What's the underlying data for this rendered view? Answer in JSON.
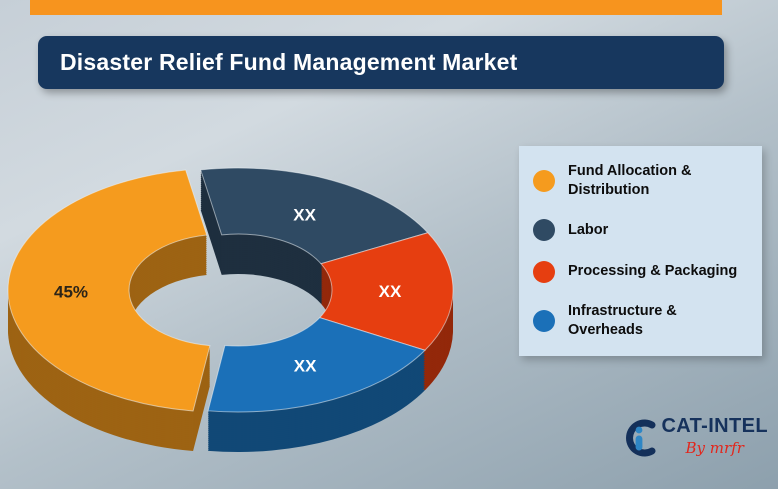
{
  "logo": {
    "brand": "CAT-INTEL",
    "tagline": "By mrfr"
  },
  "chart_data": {
    "type": "pie",
    "subtype": "3d-exploded-donut",
    "title": "Disaster Relief Fund Management Market",
    "legend_position": "right",
    "start_angle_deg": 98,
    "slices": [
      {
        "label": "Fund Allocation & Distribution",
        "value_pct": 45,
        "data_label": "45%",
        "color": "#F59B1E",
        "label_color": "#2b2418"
      },
      {
        "label": "Labor",
        "value_pct": 20,
        "data_label": "XX",
        "color": "#2F4A63",
        "label_color": "#FFFFFF"
      },
      {
        "label": "Processing & Packaging",
        "value_pct": 16,
        "data_label": "XX",
        "color": "#E63E10",
        "label_color": "#FFFFFF"
      },
      {
        "label": "Infrastructure & Overheads",
        "value_pct": 19,
        "data_label": "XX",
        "color": "#1B70B8",
        "label_color": "#FFFFFF"
      }
    ]
  }
}
